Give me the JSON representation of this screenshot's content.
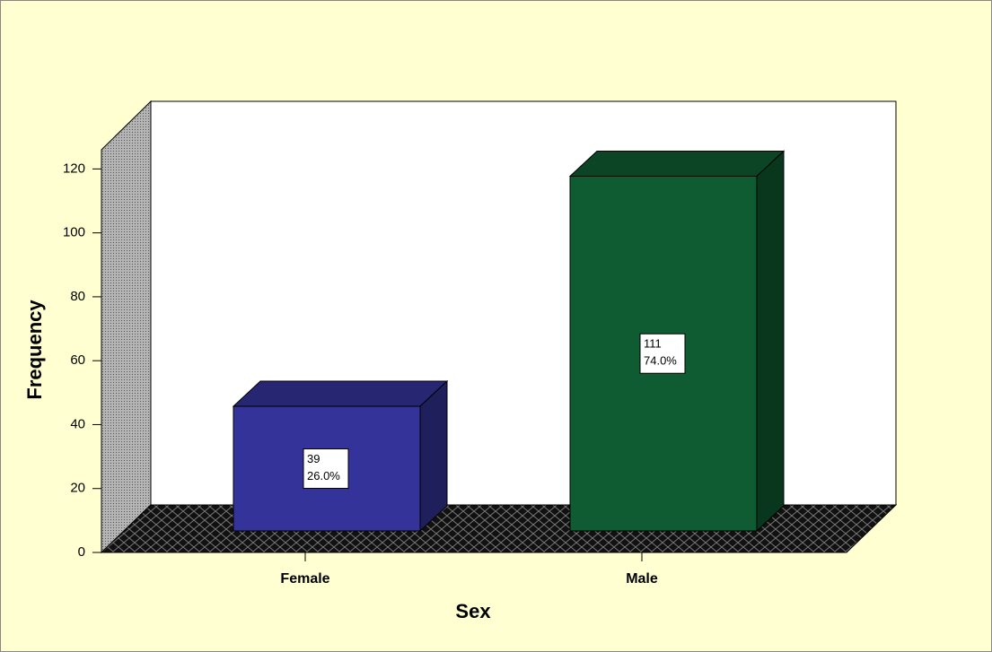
{
  "chart_data": {
    "type": "bar3d",
    "categories": [
      "Female",
      "Male"
    ],
    "values": [
      39,
      111
    ],
    "percent_labels": [
      "26.0%",
      "74.0%"
    ],
    "colors": [
      "#333399",
      "#0f5c32"
    ],
    "x_label": "Sex",
    "y_label": "Frequency",
    "ylim": [
      0,
      126
    ],
    "yticks": [
      0,
      20,
      40,
      60,
      80,
      100,
      120
    ]
  }
}
